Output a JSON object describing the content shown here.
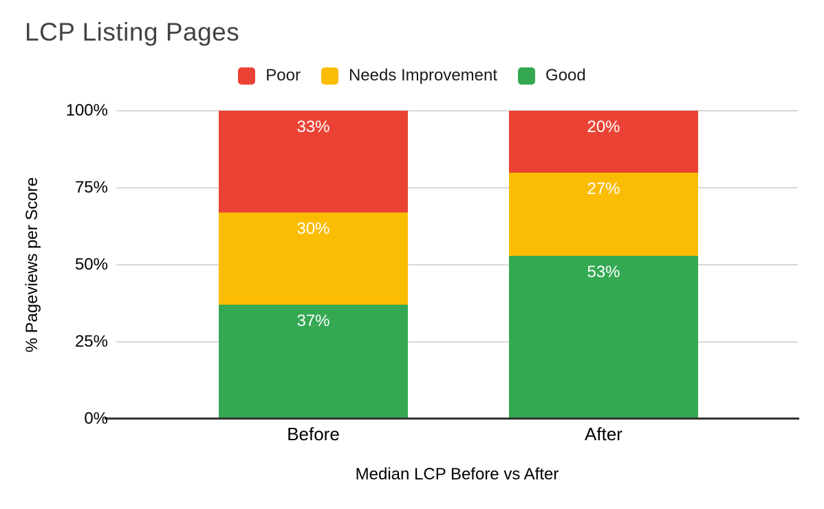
{
  "title": {
    "text": "LCP Listing Pages",
    "color": "#434343"
  },
  "legend": {
    "items": [
      {
        "label": "Poor",
        "color": "#ea4335"
      },
      {
        "label": "Needs Improvement",
        "color": "#fbbc04"
      },
      {
        "label": "Good",
        "color": "#34a853"
      }
    ]
  },
  "axes": {
    "y_title": "% Pageviews per Score",
    "x_title": "Median LCP Before vs After",
    "y_ticks": [
      {
        "label": "0%",
        "value": 0
      },
      {
        "label": "25%",
        "value": 25
      },
      {
        "label": "50%",
        "value": 50
      },
      {
        "label": "75%",
        "value": 75
      },
      {
        "label": "100%",
        "value": 100
      }
    ]
  },
  "colors": {
    "poor": "#ea4335",
    "needs_improvement": "#fbbc04",
    "good": "#34a853",
    "gridline": "#d9d9d9",
    "axis_line": "#333333",
    "data_label": "#ffffff",
    "title_text": "#434343"
  },
  "chart_data": {
    "type": "bar",
    "stacked": true,
    "percent_stacked": true,
    "title": "LCP Listing Pages",
    "xlabel": "Median LCP Before vs After",
    "ylabel": "% Pageviews per Score",
    "categories": [
      "Before",
      "After"
    ],
    "series": [
      {
        "name": "Good",
        "color": "#34a853",
        "values": [
          37,
          53
        ],
        "labels": [
          "37%",
          "53%"
        ]
      },
      {
        "name": "Needs Improvement",
        "color": "#fbbc04",
        "values": [
          30,
          27
        ],
        "labels": [
          "30%",
          "27%"
        ]
      },
      {
        "name": "Poor",
        "color": "#ea4335",
        "values": [
          33,
          20
        ],
        "labels": [
          "33%",
          "20%"
        ]
      }
    ],
    "series_order": "bottom-to-top",
    "ylim": [
      0,
      100
    ],
    "ytick_labels": [
      "0%",
      "25%",
      "50%",
      "75%",
      "100%"
    ],
    "grid": true,
    "legend_position": "top",
    "data_labels": true,
    "data_label_color": "#ffffff"
  }
}
